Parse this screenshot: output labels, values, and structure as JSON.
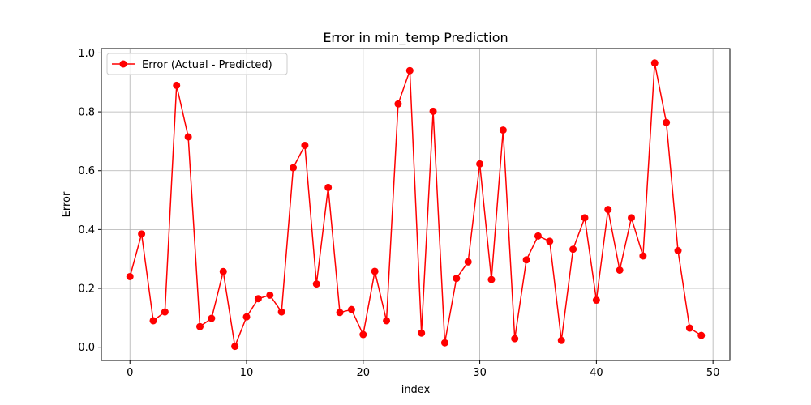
{
  "chart_data": {
    "type": "line",
    "title": "Error in min_temp Prediction",
    "xlabel": "index",
    "ylabel": "Error",
    "xlim": [
      -2.45,
      51.45
    ],
    "ylim": [
      -0.045,
      1.015
    ],
    "xticks": [
      0,
      10,
      20,
      30,
      40,
      50
    ],
    "yticks": [
      0.0,
      0.2,
      0.4,
      0.6,
      0.8,
      1.0
    ],
    "grid": true,
    "legend_position": "top-left",
    "series": [
      {
        "name": "Error (Actual - Predicted)",
        "color": "#ff0000",
        "marker": "circle",
        "x": [
          0,
          1,
          2,
          3,
          4,
          5,
          6,
          7,
          8,
          9,
          10,
          11,
          12,
          13,
          14,
          15,
          16,
          17,
          18,
          19,
          20,
          21,
          22,
          23,
          24,
          25,
          26,
          27,
          28,
          29,
          30,
          31,
          32,
          33,
          34,
          35,
          36,
          37,
          38,
          39,
          40,
          41,
          42,
          43,
          44,
          45,
          46,
          47,
          48,
          49
        ],
        "values": [
          0.24,
          0.385,
          0.09,
          0.12,
          0.89,
          0.715,
          0.07,
          0.098,
          0.257,
          0.003,
          0.103,
          0.165,
          0.177,
          0.12,
          0.61,
          0.686,
          0.215,
          0.543,
          0.118,
          0.128,
          0.043,
          0.258,
          0.09,
          0.827,
          0.94,
          0.048,
          0.802,
          0.015,
          0.234,
          0.29,
          0.623,
          0.23,
          0.738,
          0.029,
          0.297,
          0.378,
          0.36,
          0.023,
          0.333,
          0.44,
          0.16,
          0.468,
          0.262,
          0.44,
          0.31,
          0.966,
          0.764,
          0.328,
          0.065,
          0.04
        ]
      }
    ]
  }
}
